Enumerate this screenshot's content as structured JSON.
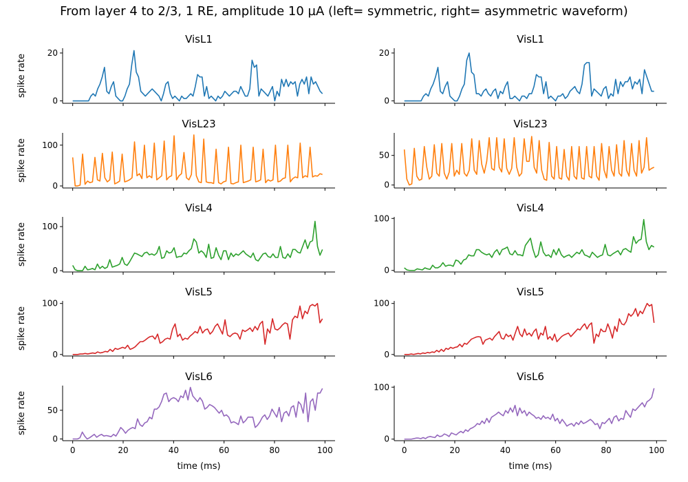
{
  "figure": {
    "title": "From layer 4 to 2/3, 1 RE, amplitude 10 µA (left= symmetric, right= asymmetric waveform)"
  },
  "chart_data": [
    {
      "type": "line",
      "column": "left",
      "row": 0,
      "title": "VisL1",
      "ylabel": "spike rate",
      "xlabel": "",
      "color": "#1f77b4",
      "ylim": [
        -1,
        22
      ],
      "yticks": [
        0,
        20
      ],
      "xticks": [
        0,
        20,
        40,
        60,
        80,
        100
      ],
      "show_xticklabels": false,
      "x0": 0,
      "dx": 1,
      "values": [
        0,
        0,
        0,
        0,
        0,
        0,
        0,
        0,
        2,
        3,
        2,
        5,
        7,
        10,
        14,
        4,
        3,
        6,
        8,
        2,
        1,
        0,
        0,
        2,
        5,
        7,
        15,
        21,
        12,
        10,
        4,
        3,
        2,
        3,
        4,
        5,
        4,
        3,
        2,
        0,
        3,
        7,
        8,
        3,
        1,
        2,
        1,
        0,
        2,
        1,
        1,
        2,
        3,
        2,
        6,
        11,
        10,
        10,
        2,
        6,
        1,
        2,
        1,
        0,
        2,
        1,
        2,
        4,
        3,
        2,
        3,
        4,
        4,
        3,
        6,
        4,
        2,
        2,
        5,
        17,
        14,
        15,
        2,
        5,
        4,
        3,
        2,
        4,
        6,
        0,
        4,
        2,
        9,
        6,
        9,
        6,
        8,
        7,
        8,
        2,
        7,
        9,
        7,
        10,
        3,
        10,
        7,
        8,
        6,
        4,
        3
      ]
    },
    {
      "type": "line",
      "column": "right",
      "row": 0,
      "title": "VisL1",
      "ylabel": "",
      "xlabel": "",
      "color": "#1f77b4",
      "ylim": [
        -1,
        22
      ],
      "yticks": [
        0,
        20
      ],
      "xticks": [
        0,
        20,
        40,
        60,
        80,
        100
      ],
      "show_xticklabels": false,
      "x0": 0,
      "dx": 1,
      "values": [
        0,
        0,
        0,
        0,
        0,
        0,
        0,
        0,
        2,
        3,
        2,
        5,
        7,
        10,
        14,
        4,
        3,
        6,
        8,
        2,
        1,
        0,
        0,
        2,
        5,
        7,
        17,
        20,
        12,
        11,
        3,
        3,
        2,
        4,
        5,
        3,
        2,
        4,
        5,
        1,
        4,
        3,
        6,
        8,
        1,
        1,
        2,
        1,
        0,
        2,
        2,
        1,
        3,
        3,
        6,
        11,
        10,
        10,
        3,
        8,
        1,
        2,
        1,
        0,
        2,
        2,
        3,
        1,
        2,
        4,
        5,
        6,
        4,
        3,
        7,
        15,
        16,
        16,
        2,
        5,
        4,
        3,
        2,
        5,
        6,
        1,
        3,
        2,
        9,
        3,
        8,
        6,
        8,
        8,
        10,
        5,
        8,
        7,
        9,
        3,
        13,
        10,
        7,
        4,
        4
      ]
    },
    {
      "type": "line",
      "column": "left",
      "row": 1,
      "title": "VisL23",
      "ylabel": "spike rate",
      "xlabel": "",
      "color": "#ff7f0e",
      "ylim": [
        -5,
        130
      ],
      "yticks": [
        0,
        100
      ],
      "xticks": [
        0,
        20,
        40,
        60,
        80,
        100
      ],
      "show_xticklabels": false,
      "x0": 0,
      "dx": 1,
      "values": [
        70,
        0,
        0,
        2,
        78,
        4,
        12,
        8,
        10,
        70,
        15,
        12,
        80,
        20,
        10,
        15,
        83,
        5,
        8,
        12,
        78,
        10,
        12,
        15,
        20,
        108,
        25,
        30,
        18,
        100,
        20,
        25,
        20,
        105,
        15,
        20,
        25,
        110,
        15,
        22,
        25,
        123,
        15,
        25,
        30,
        82,
        20,
        15,
        28,
        125,
        25,
        10,
        8,
        115,
        10,
        8,
        8,
        6,
        90,
        8,
        5,
        10,
        12,
        95,
        6,
        5,
        8,
        10,
        100,
        8,
        10,
        12,
        15,
        95,
        10,
        12,
        15,
        90,
        8,
        15,
        12,
        15,
        100,
        10,
        12,
        18,
        20,
        100,
        10,
        18,
        22,
        20,
        105,
        20,
        25,
        22,
        95,
        22,
        25,
        24,
        30,
        28
      ]
    },
    {
      "type": "line",
      "column": "right",
      "row": 1,
      "title": "VisL23",
      "ylabel": "",
      "xlabel": "",
      "color": "#ff7f0e",
      "ylim": [
        -5,
        88
      ],
      "yticks": [
        0,
        50
      ],
      "xticks": [
        0,
        20,
        40,
        60,
        80,
        100
      ],
      "show_xticklabels": false,
      "x0": 0,
      "dx": 1,
      "values": [
        60,
        10,
        0,
        2,
        62,
        15,
        8,
        10,
        65,
        30,
        10,
        15,
        68,
        20,
        15,
        70,
        20,
        10,
        22,
        70,
        15,
        25,
        18,
        70,
        20,
        15,
        25,
        78,
        25,
        18,
        75,
        35,
        20,
        40,
        80,
        28,
        25,
        80,
        30,
        22,
        78,
        28,
        18,
        28,
        80,
        30,
        15,
        20,
        78,
        40,
        40,
        82,
        30,
        20,
        75,
        25,
        10,
        8,
        72,
        15,
        10,
        65,
        12,
        10,
        60,
        15,
        8,
        65,
        15,
        10,
        65,
        12,
        10,
        65,
        15,
        12,
        65,
        15,
        8,
        70,
        25,
        12,
        65,
        25,
        15,
        68,
        20,
        15,
        75,
        25,
        15,
        70,
        25,
        15,
        75,
        20,
        30,
        80,
        25,
        28,
        30
      ]
    },
    {
      "type": "line",
      "column": "left",
      "row": 2,
      "title": "VisL4",
      "ylabel": "spike rate",
      "xlabel": "",
      "color": "#2ca02c",
      "ylim": [
        -3,
        122
      ],
      "yticks": [
        0,
        100
      ],
      "xticks": [
        0,
        20,
        40,
        60,
        80,
        100
      ],
      "show_xticklabels": false,
      "x0": 0,
      "dx": 1,
      "values": [
        12,
        2,
        0,
        0,
        0,
        10,
        2,
        3,
        5,
        2,
        15,
        5,
        10,
        5,
        8,
        25,
        8,
        10,
        12,
        15,
        30,
        15,
        12,
        20,
        30,
        40,
        38,
        35,
        32,
        40,
        42,
        36,
        38,
        35,
        40,
        55,
        28,
        30,
        45,
        40,
        42,
        52,
        30,
        32,
        32,
        40,
        38,
        45,
        50,
        72,
        65,
        40,
        45,
        40,
        30,
        60,
        28,
        30,
        52,
        35,
        25,
        45,
        45,
        25,
        40,
        32,
        38,
        35,
        40,
        45,
        38,
        34,
        30,
        40,
        25,
        22,
        30,
        38,
        40,
        32,
        30,
        38,
        30,
        30,
        55,
        30,
        28,
        38,
        30,
        48,
        48,
        42,
        40,
        55,
        70,
        50,
        65,
        68,
        112,
        55,
        35,
        48
      ]
    },
    {
      "type": "line",
      "column": "right",
      "row": 2,
      "title": "VisL4",
      "ylabel": "",
      "xlabel": "",
      "color": "#2ca02c",
      "ylim": [
        -3,
        103
      ],
      "yticks": [
        0,
        100
      ],
      "xticks": [
        0,
        20,
        40,
        60,
        80,
        100
      ],
      "show_xticklabels": false,
      "x0": 0,
      "dx": 1,
      "values": [
        5,
        1,
        0,
        0,
        0,
        3,
        2,
        1,
        5,
        3,
        2,
        10,
        5,
        5,
        8,
        15,
        8,
        10,
        10,
        8,
        20,
        18,
        12,
        20,
        22,
        30,
        28,
        28,
        40,
        40,
        35,
        32,
        30,
        32,
        25,
        35,
        40,
        30,
        40,
        42,
        45,
        32,
        30,
        38,
        30,
        30,
        28,
        48,
        55,
        62,
        40,
        25,
        30,
        55,
        35,
        28,
        30,
        25,
        40,
        30,
        42,
        30,
        25,
        28,
        30,
        25,
        30,
        35,
        32,
        40,
        30,
        28,
        25,
        35,
        30,
        25,
        28,
        30,
        50,
        30,
        28,
        32,
        35,
        38,
        30,
        40,
        42,
        38,
        35,
        65,
        52,
        58,
        60,
        98,
        55,
        40,
        48,
        45
      ]
    },
    {
      "type": "line",
      "column": "left",
      "row": 3,
      "title": "VisL5",
      "ylabel": "spike rate",
      "xlabel": "",
      "color": "#d62728",
      "ylim": [
        -3,
        105
      ],
      "yticks": [
        0,
        100
      ],
      "xticks": [
        0,
        20,
        40,
        60,
        80,
        100
      ],
      "show_xticklabels": false,
      "x0": 0,
      "dx": 1,
      "values": [
        0,
        0,
        0,
        1,
        1,
        2,
        1,
        2,
        3,
        2,
        5,
        3,
        4,
        6,
        5,
        10,
        6,
        12,
        10,
        12,
        14,
        12,
        18,
        10,
        12,
        15,
        20,
        25,
        25,
        28,
        32,
        35,
        36,
        30,
        40,
        22,
        25,
        30,
        32,
        30,
        50,
        60,
        35,
        40,
        28,
        32,
        30,
        36,
        40,
        45,
        42,
        55,
        42,
        48,
        50,
        40,
        45,
        55,
        60,
        50,
        40,
        68,
        38,
        35,
        40,
        42,
        40,
        30,
        48,
        45,
        48,
        52,
        45,
        55,
        48,
        60,
        65,
        20,
        50,
        42,
        70,
        50,
        48,
        52,
        58,
        62,
        60,
        30,
        68,
        75,
        72,
        95,
        70,
        85,
        80,
        95,
        98,
        95,
        100,
        62,
        70
      ]
    },
    {
      "type": "line",
      "column": "right",
      "row": 3,
      "title": "VisL5",
      "ylabel": "",
      "xlabel": "",
      "color": "#d62728",
      "ylim": [
        -3,
        105
      ],
      "yticks": [
        0,
        100
      ],
      "xticks": [
        0,
        20,
        40,
        60,
        80,
        100
      ],
      "show_xticklabels": false,
      "x0": 0,
      "dx": 1,
      "values": [
        0,
        0,
        0,
        1,
        0,
        1,
        2,
        1,
        3,
        2,
        4,
        3,
        5,
        4,
        8,
        5,
        10,
        6,
        12,
        10,
        14,
        12,
        14,
        15,
        20,
        15,
        22,
        20,
        25,
        30,
        32,
        34,
        35,
        34,
        20,
        28,
        30,
        32,
        28,
        35,
        40,
        45,
        32,
        30,
        40,
        35,
        38,
        28,
        42,
        55,
        40,
        35,
        50,
        38,
        42,
        36,
        45,
        50,
        30,
        42,
        38,
        55,
        30,
        35,
        28,
        40,
        25,
        30,
        35,
        38,
        40,
        42,
        35,
        40,
        45,
        50,
        48,
        55,
        60,
        50,
        58,
        62,
        22,
        40,
        35,
        50,
        45,
        45,
        60,
        48,
        32,
        55,
        45,
        70,
        60,
        58,
        65,
        80,
        75,
        80,
        90,
        75,
        85,
        80,
        90,
        100,
        95,
        98,
        62
      ]
    },
    {
      "type": "line",
      "column": "left",
      "row": 4,
      "title": "VisL6",
      "ylabel": "spike rate",
      "xlabel": "time (ms)",
      "color": "#9467bd",
      "ylim": [
        -3,
        93
      ],
      "yticks": [
        0,
        50
      ],
      "xticks": [
        0,
        20,
        40,
        60,
        80,
        100
      ],
      "show_xticklabels": true,
      "x0": 0,
      "dx": 1,
      "values": [
        0,
        0,
        0,
        2,
        12,
        5,
        0,
        2,
        5,
        8,
        3,
        6,
        8,
        5,
        6,
        5,
        4,
        8,
        5,
        12,
        20,
        16,
        10,
        15,
        18,
        20,
        18,
        35,
        25,
        22,
        28,
        30,
        38,
        35,
        52,
        52,
        56,
        65,
        78,
        80,
        65,
        70,
        72,
        70,
        65,
        75,
        72,
        85,
        68,
        90,
        75,
        70,
        65,
        72,
        66,
        52,
        55,
        60,
        58,
        55,
        50,
        45,
        50,
        40,
        42,
        38,
        28,
        30,
        28,
        25,
        40,
        28,
        32,
        38,
        38,
        38,
        20,
        24,
        30,
        38,
        42,
        34,
        40,
        52,
        45,
        38,
        55,
        30,
        45,
        48,
        40,
        55,
        58,
        38,
        65,
        60,
        45,
        80,
        30,
        65,
        70,
        50,
        80,
        80,
        88
      ]
    },
    {
      "type": "line",
      "column": "right",
      "row": 4,
      "title": "VisL6",
      "ylabel": "",
      "xlabel": "time (ms)",
      "color": "#9467bd",
      "ylim": [
        -3,
        103
      ],
      "yticks": [
        0,
        100
      ],
      "xticks": [
        0,
        20,
        40,
        60,
        80,
        100
      ],
      "show_xticklabels": true,
      "x0": 0,
      "dx": 1,
      "values": [
        0,
        0,
        0,
        0,
        1,
        2,
        2,
        1,
        3,
        1,
        4,
        5,
        4,
        3,
        8,
        5,
        6,
        10,
        8,
        5,
        12,
        10,
        8,
        12,
        15,
        12,
        18,
        15,
        20,
        22,
        25,
        30,
        28,
        35,
        30,
        40,
        32,
        42,
        45,
        48,
        52,
        48,
        45,
        55,
        50,
        60,
        52,
        65,
        45,
        60,
        50,
        55,
        45,
        52,
        48,
        45,
        40,
        42,
        38,
        45,
        40,
        42,
        38,
        48,
        35,
        40,
        30,
        38,
        32,
        25,
        28,
        30,
        25,
        32,
        28,
        35,
        30,
        32,
        35,
        38,
        34,
        28,
        30,
        20,
        32,
        30,
        35,
        40,
        30,
        42,
        45,
        35,
        40,
        38,
        55,
        48,
        42,
        58,
        55,
        60,
        65,
        70,
        62,
        72,
        75,
        80,
        98
      ]
    }
  ]
}
